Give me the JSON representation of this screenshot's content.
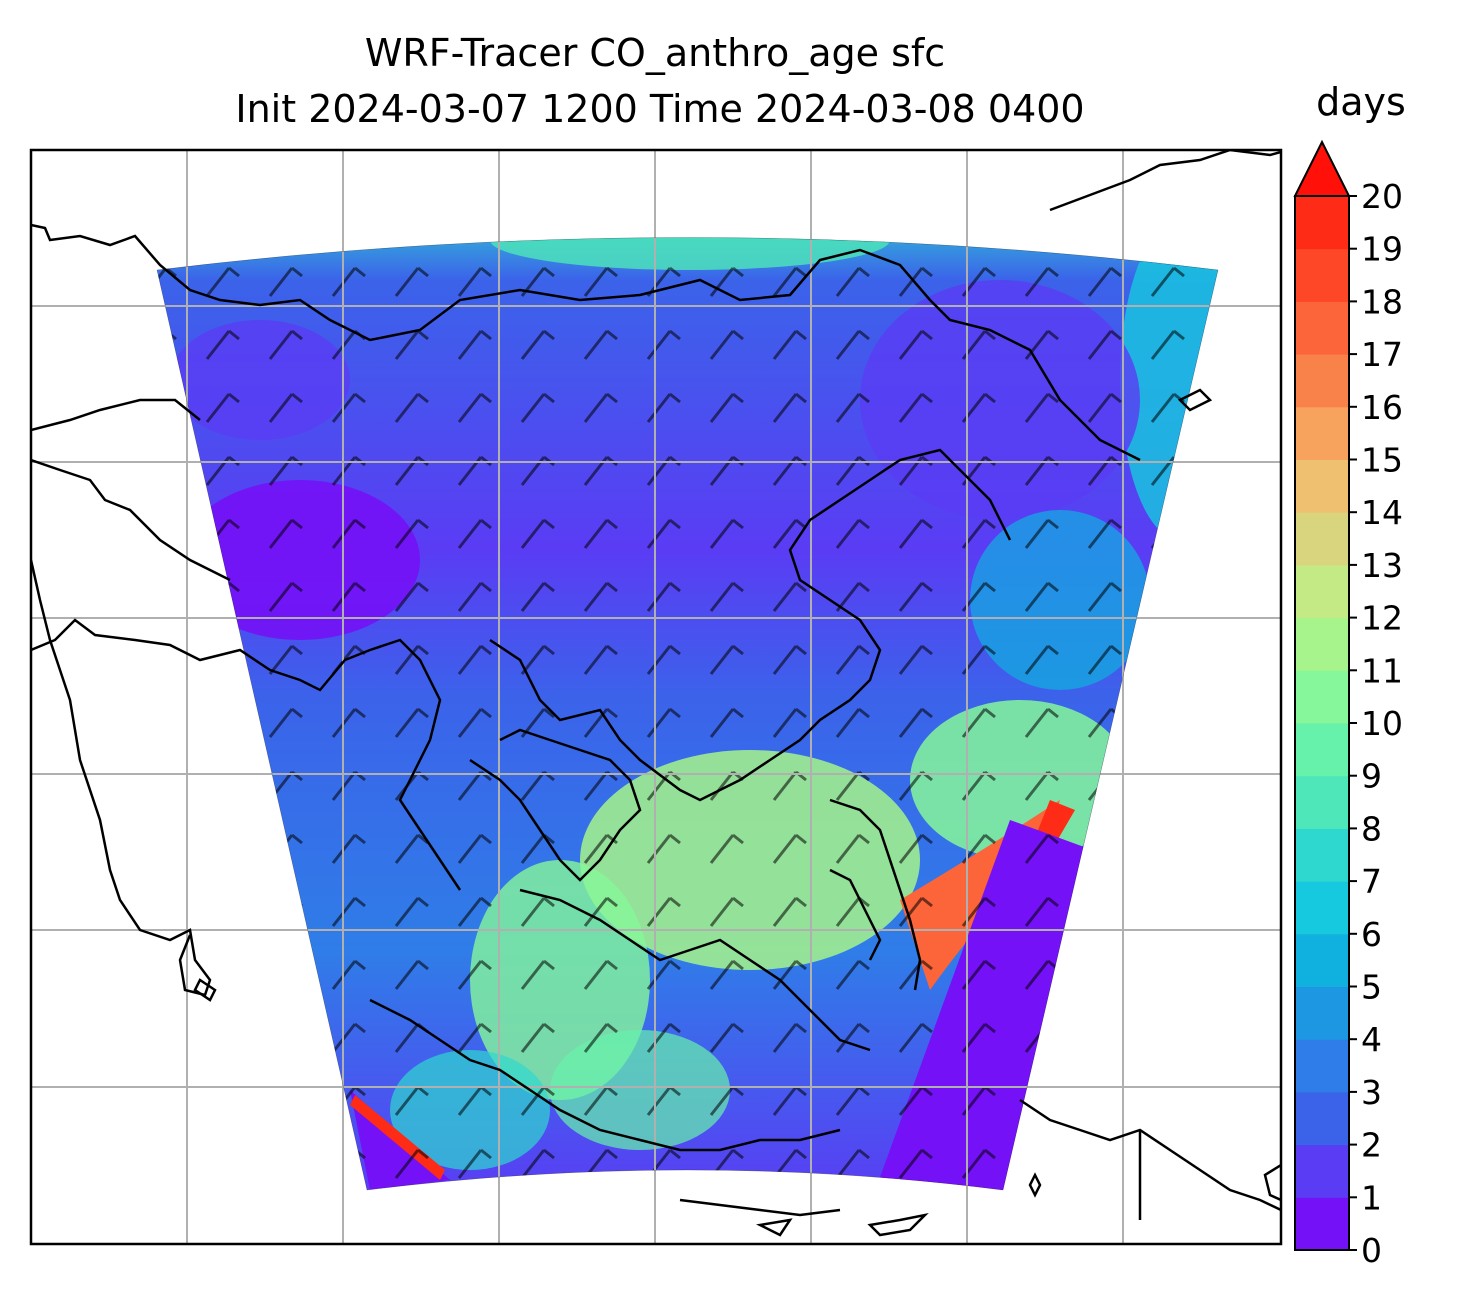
{
  "title": {
    "line1": "WRF-Tracer CO_anthro_age sfc",
    "line2": "Init 2024-03-07 1200 Time 2024-03-08 0400"
  },
  "colorbar": {
    "label": "days",
    "ticks": [
      "0",
      "1",
      "2",
      "3",
      "4",
      "5",
      "6",
      "7",
      "8",
      "9",
      "10",
      "11",
      "12",
      "13",
      "14",
      "15",
      "16",
      "17",
      "18",
      "19",
      "20"
    ],
    "colors": [
      "#7411f6",
      "#5a3cf4",
      "#3b63ea",
      "#2f7de8",
      "#1d97e2",
      "#10b1df",
      "#17c9de",
      "#2fd8cf",
      "#4de7b9",
      "#66f2ab",
      "#86f79a",
      "#a6f48b",
      "#c3ea85",
      "#d9d57e",
      "#eec070",
      "#f7a25d",
      "#f9824b",
      "#fb6539",
      "#fd4727",
      "#fe2b16",
      "#ff1109"
    ],
    "extend": "max"
  },
  "map": {
    "gridlines": true,
    "coastlines": true,
    "wind_barbs": true
  }
}
